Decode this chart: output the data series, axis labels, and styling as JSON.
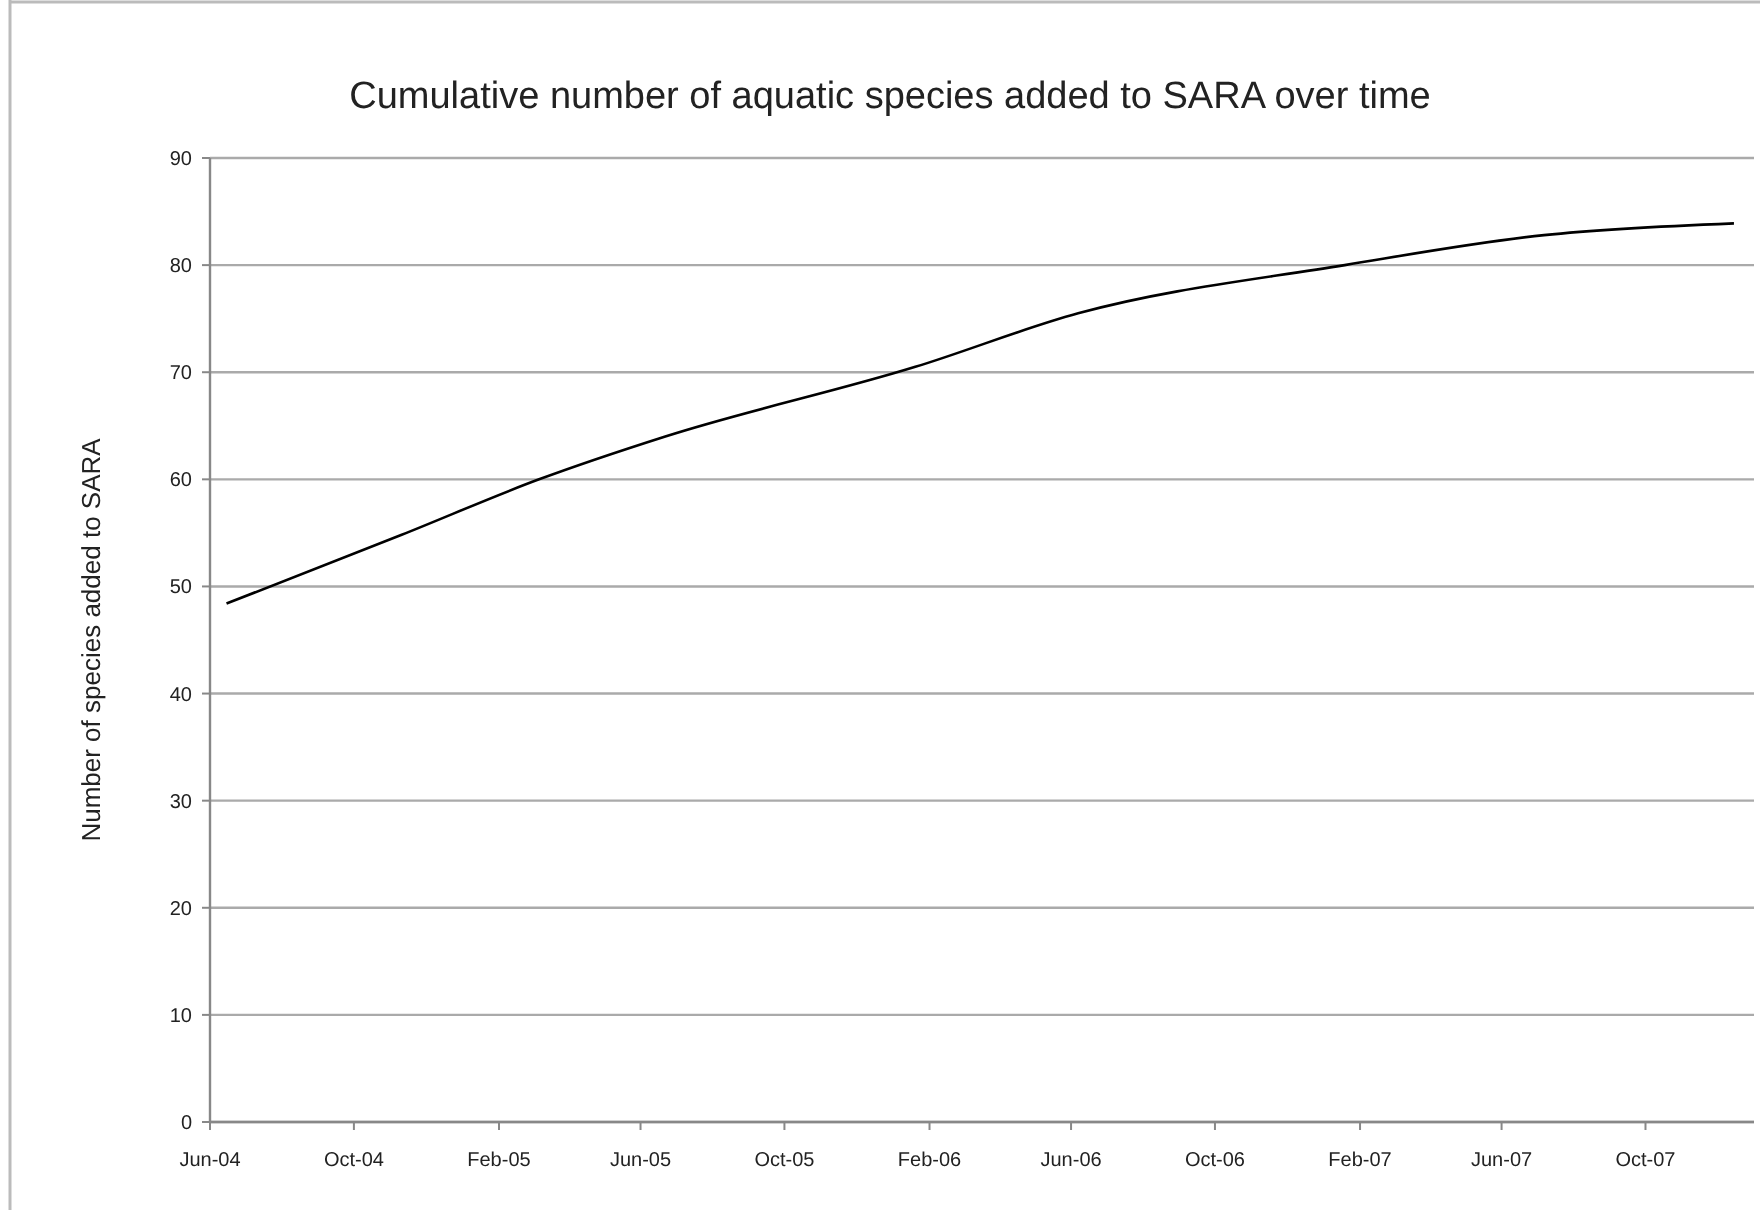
{
  "chart_data": {
    "type": "line",
    "title": "Cumulative number of aquatic species added to SARA over time",
    "ylabel": "Number of species added to SARA",
    "x": [
      "2004-06-15",
      "2004-11-10",
      "2005-03-07",
      "2005-06-22",
      "2006-01-20",
      "2006-06-07",
      "2007-01-19",
      "2007-07-07",
      "2007-12-15"
    ],
    "series": [
      {
        "color": "#000000",
        "values": [
          48.4,
          54.8,
          60.0,
          64.0,
          70.5,
          75.5,
          80.0,
          82.8,
          83.9
        ]
      }
    ],
    "xlim": [
      "2004-06-01",
      "2008-01-01"
    ],
    "xticks": [
      {
        "value": "2004-06-01",
        "label": "Jun-04"
      },
      {
        "value": "2004-10-01",
        "label": "Oct-04"
      },
      {
        "value": "2005-02-01",
        "label": "Feb-05"
      },
      {
        "value": "2005-06-01",
        "label": "Jun-05"
      },
      {
        "value": "2005-10-01",
        "label": "Oct-05"
      },
      {
        "value": "2006-02-01",
        "label": "Feb-06"
      },
      {
        "value": "2006-06-01",
        "label": "Jun-06"
      },
      {
        "value": "2006-10-01",
        "label": "Oct-06"
      },
      {
        "value": "2007-02-01",
        "label": "Feb-07"
      },
      {
        "value": "2007-06-01",
        "label": "Jun-07"
      },
      {
        "value": "2007-10-01",
        "label": "Oct-07"
      }
    ],
    "ylim": [
      0,
      90
    ],
    "yticks": [
      0,
      10,
      20,
      30,
      40,
      50,
      60,
      70,
      80,
      90
    ],
    "grid": "y",
    "marker": "none",
    "line_style": "solid"
  }
}
